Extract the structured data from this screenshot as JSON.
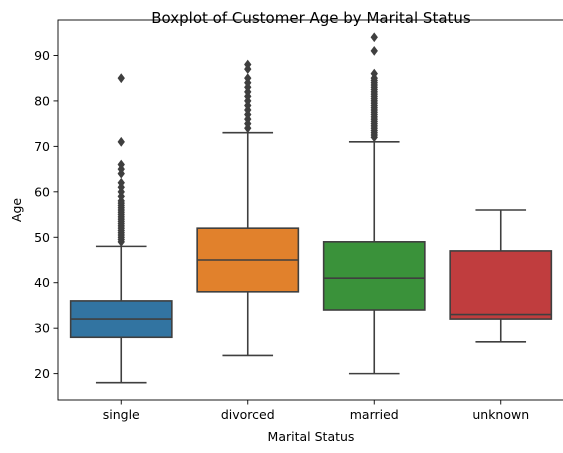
{
  "chart_data": {
    "type": "boxplot",
    "title": "Boxplot of Customer Age by Marital Status",
    "xlabel": "Marital Status",
    "ylabel": "Age",
    "categories": [
      "single",
      "divorced",
      "married",
      "unknown"
    ],
    "ylim": [
      14.2,
      97.8
    ],
    "yticks": [
      20,
      30,
      40,
      50,
      60,
      70,
      80,
      90
    ],
    "grid": false,
    "boxes": [
      {
        "category": "single",
        "color": "#3274a1",
        "whisker_low": 18,
        "q1": 28,
        "median": 32,
        "q3": 36,
        "whisker_high": 48,
        "outliers": [
          49,
          49.5,
          50,
          50.5,
          51,
          51.5,
          52,
          52.5,
          53,
          53.5,
          54,
          54.5,
          55,
          55.5,
          56,
          56.5,
          57,
          57.5,
          58,
          59,
          60,
          61,
          62,
          64,
          65,
          66,
          71,
          85
        ]
      },
      {
        "category": "divorced",
        "color": "#e1812c",
        "whisker_low": 24,
        "q1": 38,
        "median": 45,
        "q3": 52,
        "whisker_high": 73,
        "outliers": [
          74,
          75,
          76,
          77,
          78,
          79,
          80,
          81,
          82,
          83,
          84,
          85,
          87,
          88
        ]
      },
      {
        "category": "married",
        "color": "#3a923a",
        "whisker_low": 20,
        "q1": 34,
        "median": 41,
        "q3": 49,
        "whisker_high": 71,
        "outliers": [
          72,
          72.5,
          73,
          73.5,
          74,
          74.5,
          75,
          75.5,
          76,
          76.5,
          77,
          77.5,
          78,
          78.5,
          79,
          79.5,
          80,
          80.5,
          81,
          81.5,
          82,
          82.5,
          83,
          83.5,
          84,
          84.5,
          85,
          86,
          91,
          94
        ]
      },
      {
        "category": "unknown",
        "color": "#c03d3e",
        "whisker_low": 27,
        "q1": 32,
        "median": 33,
        "q3": 47,
        "whisker_high": 56,
        "outliers": []
      }
    ]
  }
}
